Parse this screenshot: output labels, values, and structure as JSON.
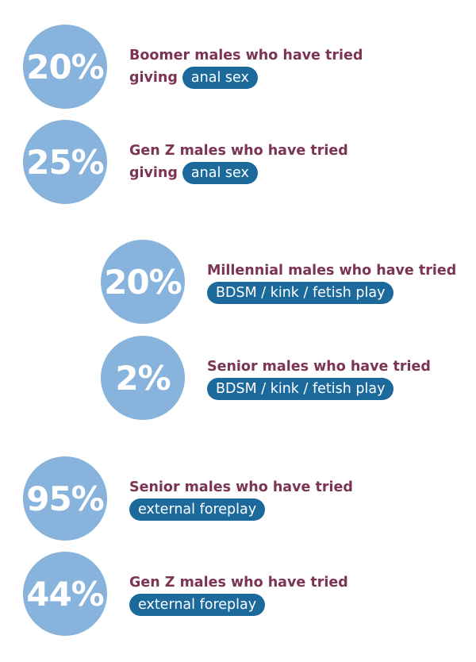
{
  "colors": {
    "circle": "#87b3dc",
    "text": "#7b3453",
    "pill": "#1c6a9c"
  },
  "stats": [
    {
      "percent": "20%",
      "line1": "Boomer males who have tried",
      "prefix": "giving",
      "pill": "anal sex"
    },
    {
      "percent": "25%",
      "line1": "Gen Z males who have tried",
      "prefix": "giving",
      "pill": "anal sex"
    },
    {
      "percent": "20%",
      "line1": "Millennial males who have tried",
      "prefix": "",
      "pill": "BDSM / kink / fetish play"
    },
    {
      "percent": "2%",
      "line1": "Senior males who have tried",
      "prefix": "",
      "pill": "BDSM / kink / fetish play"
    },
    {
      "percent": "95%",
      "line1": "Senior males who have tried",
      "prefix": "",
      "pill": "external foreplay"
    },
    {
      "percent": "44%",
      "line1": "Gen Z males who have tried",
      "prefix": "",
      "pill": "external foreplay"
    }
  ]
}
